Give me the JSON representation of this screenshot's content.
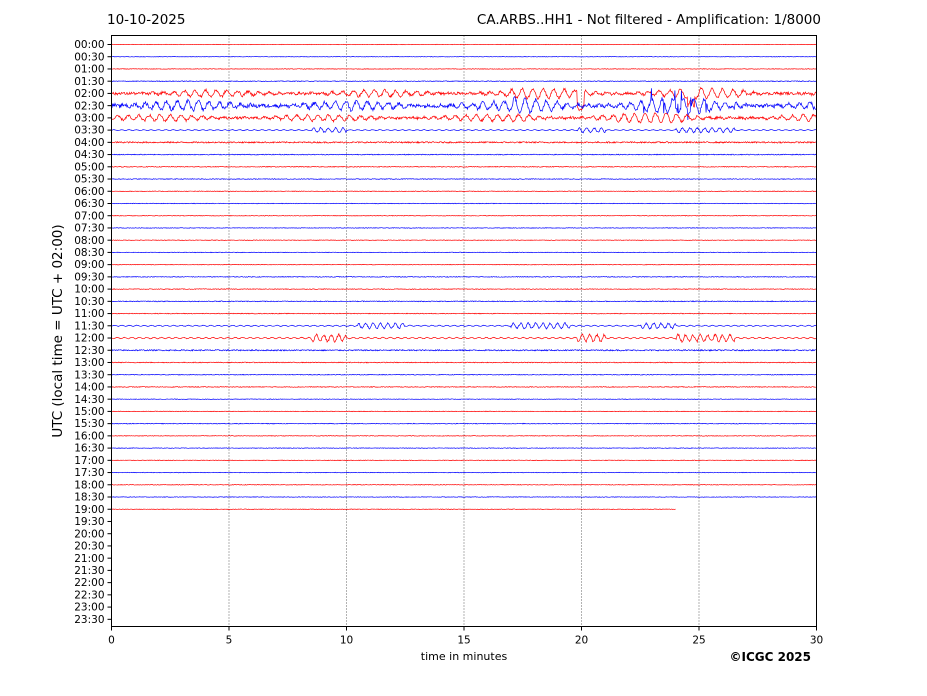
{
  "header": {
    "date": "10-10-2025",
    "title": "CA.ARBS..HH1 - Not filtered - Amplification: 1/8000"
  },
  "footer": {
    "copyright": "©ICGC 2025"
  },
  "chart_data": {
    "type": "line",
    "title": "CA.ARBS..HH1 - Not filtered - Amplification: 1/8000",
    "xlabel": "time in minutes",
    "ylabel": "UTC (local time = UTC + 02:00)",
    "xlim": [
      0,
      30
    ],
    "x_ticks": [
      "0",
      "5",
      "10",
      "15",
      "20",
      "25",
      "30"
    ],
    "grid": "vertical dotted lines at 5-minute intervals",
    "trace_colors": [
      "#ff0000",
      "#0000ff"
    ],
    "row_labels": [
      "00:00",
      "00:30",
      "01:00",
      "01:30",
      "02:00",
      "02:30",
      "03:00",
      "03:30",
      "04:00",
      "04:30",
      "05:00",
      "05:30",
      "06:00",
      "06:30",
      "07:00",
      "07:30",
      "08:00",
      "08:30",
      "09:00",
      "09:30",
      "10:00",
      "10:30",
      "11:00",
      "11:30",
      "12:00",
      "12:30",
      "13:00",
      "13:30",
      "14:00",
      "14:30",
      "15:00",
      "15:30",
      "16:00",
      "16:30",
      "17:00",
      "17:30",
      "18:00",
      "18:30",
      "19:00",
      "19:30",
      "20:00",
      "20:30",
      "21:00",
      "21:30",
      "22:00",
      "22:30",
      "23:00",
      "23:30"
    ],
    "traces_recorded": 39,
    "last_trace_end_minute": 24,
    "activity_per_row": [
      0.3,
      0.3,
      0.4,
      0.5,
      3.2,
      4.6,
      3.0,
      1.2,
      1.0,
      0.6,
      0.5,
      0.5,
      0.4,
      0.4,
      0.4,
      0.4,
      0.4,
      0.4,
      0.4,
      0.5,
      0.5,
      0.6,
      0.5,
      1.4,
      1.8,
      0.9,
      0.6,
      0.5,
      0.5,
      0.4,
      0.4,
      0.5,
      0.4,
      0.4,
      0.4,
      0.4,
      0.4,
      0.4,
      0.4
    ]
  }
}
